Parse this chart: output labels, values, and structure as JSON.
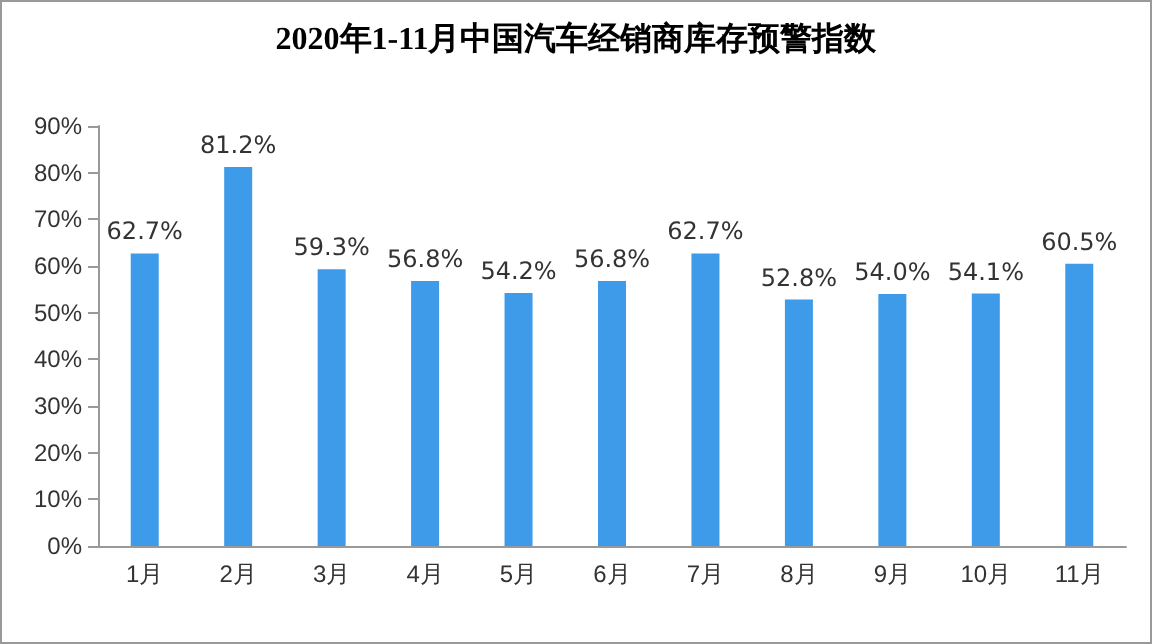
{
  "chart_data": {
    "type": "bar",
    "title": "2020年1-11月中国汽车经销商库存预警指数",
    "categories": [
      "1月",
      "2月",
      "3月",
      "4月",
      "5月",
      "6月",
      "7月",
      "8月",
      "9月",
      "10月",
      "11月"
    ],
    "values": [
      62.7,
      81.2,
      59.3,
      56.8,
      54.2,
      56.8,
      62.7,
      52.8,
      54.0,
      54.1,
      60.5
    ],
    "value_labels": [
      "62.7%",
      "81.2%",
      "59.3%",
      "56.8%",
      "54.2%",
      "56.8%",
      "62.7%",
      "52.8%",
      "54.0%",
      "54.1%",
      "60.5%"
    ],
    "color": "#3d9be9",
    "ylim": [
      0,
      90
    ],
    "yticks": [
      {
        "value": 0,
        "label": "0%"
      },
      {
        "value": 10,
        "label": "10%"
      },
      {
        "value": 20,
        "label": "20%"
      },
      {
        "value": 30,
        "label": "30%"
      },
      {
        "value": 40,
        "label": "40%"
      },
      {
        "value": 50,
        "label": "50%"
      },
      {
        "value": 60,
        "label": "60%"
      },
      {
        "value": 70,
        "label": "70%"
      },
      {
        "value": 80,
        "label": "80%"
      },
      {
        "value": 90,
        "label": "90%"
      }
    ],
    "grid": false
  }
}
